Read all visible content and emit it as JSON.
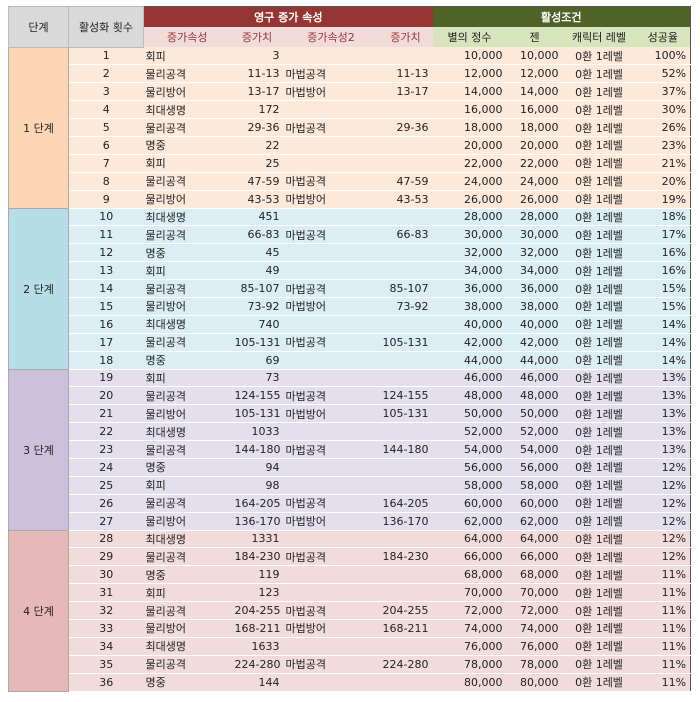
{
  "header": {
    "stage": "단계",
    "count": "활성화 횟수",
    "group1": "영구 증가 속성",
    "group2": "활성조건",
    "columns": [
      "증가속성",
      "증가치",
      "증가속성2",
      "증가치",
      "별의 정수",
      "젠",
      "캐릭터 레벨",
      "성공율"
    ]
  },
  "stages": [
    {
      "label": "1 단계",
      "rows": [
        [
          1,
          "회피",
          "3",
          null,
          null,
          "10,000",
          "10,000",
          "0환 1레벨",
          "100%"
        ],
        [
          2,
          "물리공격",
          "11-13",
          "마법공격",
          "11-13",
          "12,000",
          "12,000",
          "0환 1레벨",
          "52%"
        ],
        [
          3,
          "물리방어",
          "13-17",
          "마법방어",
          "13-17",
          "14,000",
          "14,000",
          "0환 1레벨",
          "37%"
        ],
        [
          4,
          "최대생명",
          "172",
          null,
          null,
          "16,000",
          "16,000",
          "0환 1레벨",
          "30%"
        ],
        [
          5,
          "물리공격",
          "29-36",
          "마법공격",
          "29-36",
          "18,000",
          "18,000",
          "0환 1레벨",
          "26%"
        ],
        [
          6,
          "명중",
          "22",
          null,
          null,
          "20,000",
          "20,000",
          "0환 1레벨",
          "23%"
        ],
        [
          7,
          "회피",
          "25",
          null,
          null,
          "22,000",
          "22,000",
          "0환 1레벨",
          "21%"
        ],
        [
          8,
          "물리공격",
          "47-59",
          "마법공격",
          "47-59",
          "24,000",
          "24,000",
          "0환 1레벨",
          "20%"
        ],
        [
          9,
          "물리방어",
          "43-53",
          "마법방어",
          "43-53",
          "26,000",
          "26,000",
          "0환 1레벨",
          "19%"
        ]
      ]
    },
    {
      "label": "2 단계",
      "rows": [
        [
          10,
          "최대생명",
          "451",
          null,
          null,
          "28,000",
          "28,000",
          "0환 1레벨",
          "18%"
        ],
        [
          11,
          "물리공격",
          "66-83",
          "마법공격",
          "66-83",
          "30,000",
          "30,000",
          "0환 1레벨",
          "17%"
        ],
        [
          12,
          "명중",
          "45",
          null,
          null,
          "32,000",
          "32,000",
          "0환 1레벨",
          "16%"
        ],
        [
          13,
          "회피",
          "49",
          null,
          null,
          "34,000",
          "34,000",
          "0환 1레벨",
          "16%"
        ],
        [
          14,
          "물리공격",
          "85-107",
          "마법공격",
          "85-107",
          "36,000",
          "36,000",
          "0환 1레벨",
          "15%"
        ],
        [
          15,
          "물리방어",
          "73-92",
          "마법방어",
          "73-92",
          "38,000",
          "38,000",
          "0환 1레벨",
          "15%"
        ],
        [
          16,
          "최대생명",
          "740",
          null,
          null,
          "40,000",
          "40,000",
          "0환 1레벨",
          "14%"
        ],
        [
          17,
          "물리공격",
          "105-131",
          "마법공격",
          "105-131",
          "42,000",
          "42,000",
          "0환 1레벨",
          "14%"
        ],
        [
          18,
          "명중",
          "69",
          null,
          null,
          "44,000",
          "44,000",
          "0환 1레벨",
          "14%"
        ]
      ]
    },
    {
      "label": "3 단계",
      "rows": [
        [
          19,
          "회피",
          "73",
          null,
          null,
          "46,000",
          "46,000",
          "0환 1레벨",
          "13%"
        ],
        [
          20,
          "물리공격",
          "124-155",
          "마법공격",
          "124-155",
          "48,000",
          "48,000",
          "0환 1레벨",
          "13%"
        ],
        [
          21,
          "물리방어",
          "105-131",
          "마법방어",
          "105-131",
          "50,000",
          "50,000",
          "0환 1레벨",
          "13%"
        ],
        [
          22,
          "최대생명",
          "1033",
          null,
          null,
          "52,000",
          "52,000",
          "0환 1레벨",
          "13%"
        ],
        [
          23,
          "물리공격",
          "144-180",
          "마법공격",
          "144-180",
          "54,000",
          "54,000",
          "0환 1레벨",
          "13%"
        ],
        [
          24,
          "명중",
          "94",
          null,
          null,
          "56,000",
          "56,000",
          "0환 1레벨",
          "12%"
        ],
        [
          25,
          "회피",
          "98",
          null,
          null,
          "58,000",
          "58,000",
          "0환 1레벨",
          "12%"
        ],
        [
          26,
          "물리공격",
          "164-205",
          "마법공격",
          "164-205",
          "60,000",
          "60,000",
          "0환 1레벨",
          "12%"
        ],
        [
          27,
          "물리방어",
          "136-170",
          "마법방어",
          "136-170",
          "62,000",
          "62,000",
          "0환 1레벨",
          "12%"
        ]
      ]
    },
    {
      "label": "4 단계",
      "rows": [
        [
          28,
          "최대생명",
          "1331",
          null,
          null,
          "64,000",
          "64,000",
          "0환 1레벨",
          "12%"
        ],
        [
          29,
          "물리공격",
          "184-230",
          "마법공격",
          "184-230",
          "66,000",
          "66,000",
          "0환 1레벨",
          "12%"
        ],
        [
          30,
          "명중",
          "119",
          null,
          null,
          "68,000",
          "68,000",
          "0환 1레벨",
          "11%"
        ],
        [
          31,
          "회피",
          "123",
          null,
          null,
          "70,000",
          "70,000",
          "0환 1레벨",
          "11%"
        ],
        [
          32,
          "물리공격",
          "204-255",
          "마법공격",
          "204-255",
          "72,000",
          "72,000",
          "0환 1레벨",
          "11%"
        ],
        [
          33,
          "물리방어",
          "168-211",
          "마법방어",
          "168-211",
          "74,000",
          "74,000",
          "0환 1레벨",
          "11%"
        ],
        [
          34,
          "최대생명",
          "1633",
          null,
          null,
          "76,000",
          "76,000",
          "0환 1레벨",
          "11%"
        ],
        [
          35,
          "물리공격",
          "224-280",
          "마법공격",
          "224-280",
          "78,000",
          "78,000",
          "0환 1레벨",
          "11%"
        ],
        [
          36,
          "명중",
          "144",
          null,
          null,
          "80,000",
          "80,000",
          "0환 1레벨",
          "11%"
        ]
      ]
    }
  ]
}
